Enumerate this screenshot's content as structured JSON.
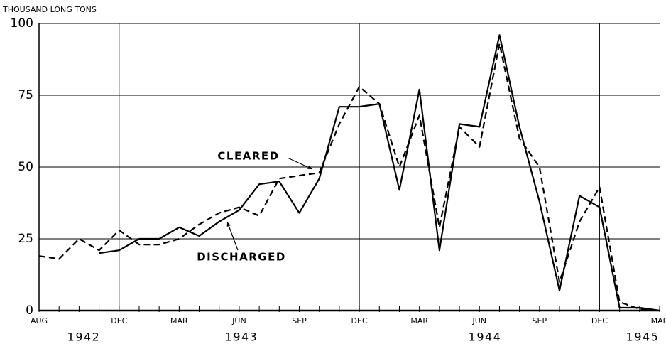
{
  "chart_data": {
    "type": "line",
    "y_label": "THOUSAND LONG TONS",
    "categories": [
      "AUG",
      null,
      null,
      null,
      "DEC",
      null,
      null,
      "MAR",
      null,
      null,
      "JUN",
      null,
      null,
      "SEP",
      null,
      null,
      "DEC",
      null,
      null,
      "MAR",
      null,
      null,
      "JUN",
      null,
      null,
      "SEP",
      null,
      null,
      "DEC",
      null,
      null,
      "MAR"
    ],
    "years": [
      "1942",
      "1943",
      "1944",
      "1945"
    ],
    "series": [
      {
        "name": "CLEARED",
        "color": "#000000",
        "style": "dashed",
        "values": [
          19,
          18,
          25,
          21,
          28,
          23,
          23,
          25,
          30,
          34,
          36,
          33,
          46,
          47,
          48,
          65,
          78,
          72,
          50,
          68,
          29,
          64,
          57,
          93,
          60,
          50,
          10,
          31,
          43,
          3,
          0.5,
          0
        ]
      },
      {
        "name": "DISCHARGED",
        "color": "#000000",
        "style": "solid",
        "values": [
          null,
          null,
          null,
          20,
          21,
          25,
          25,
          29,
          26,
          31,
          35,
          44,
          45,
          34,
          46,
          71,
          71,
          72,
          42,
          77,
          21,
          65,
          64,
          96,
          64,
          38,
          7,
          40,
          36,
          1,
          1,
          0
        ]
      }
    ],
    "ylim": [
      0,
      100
    ],
    "yticks": [
      0,
      25,
      50,
      75,
      100
    ],
    "grid": true
  }
}
